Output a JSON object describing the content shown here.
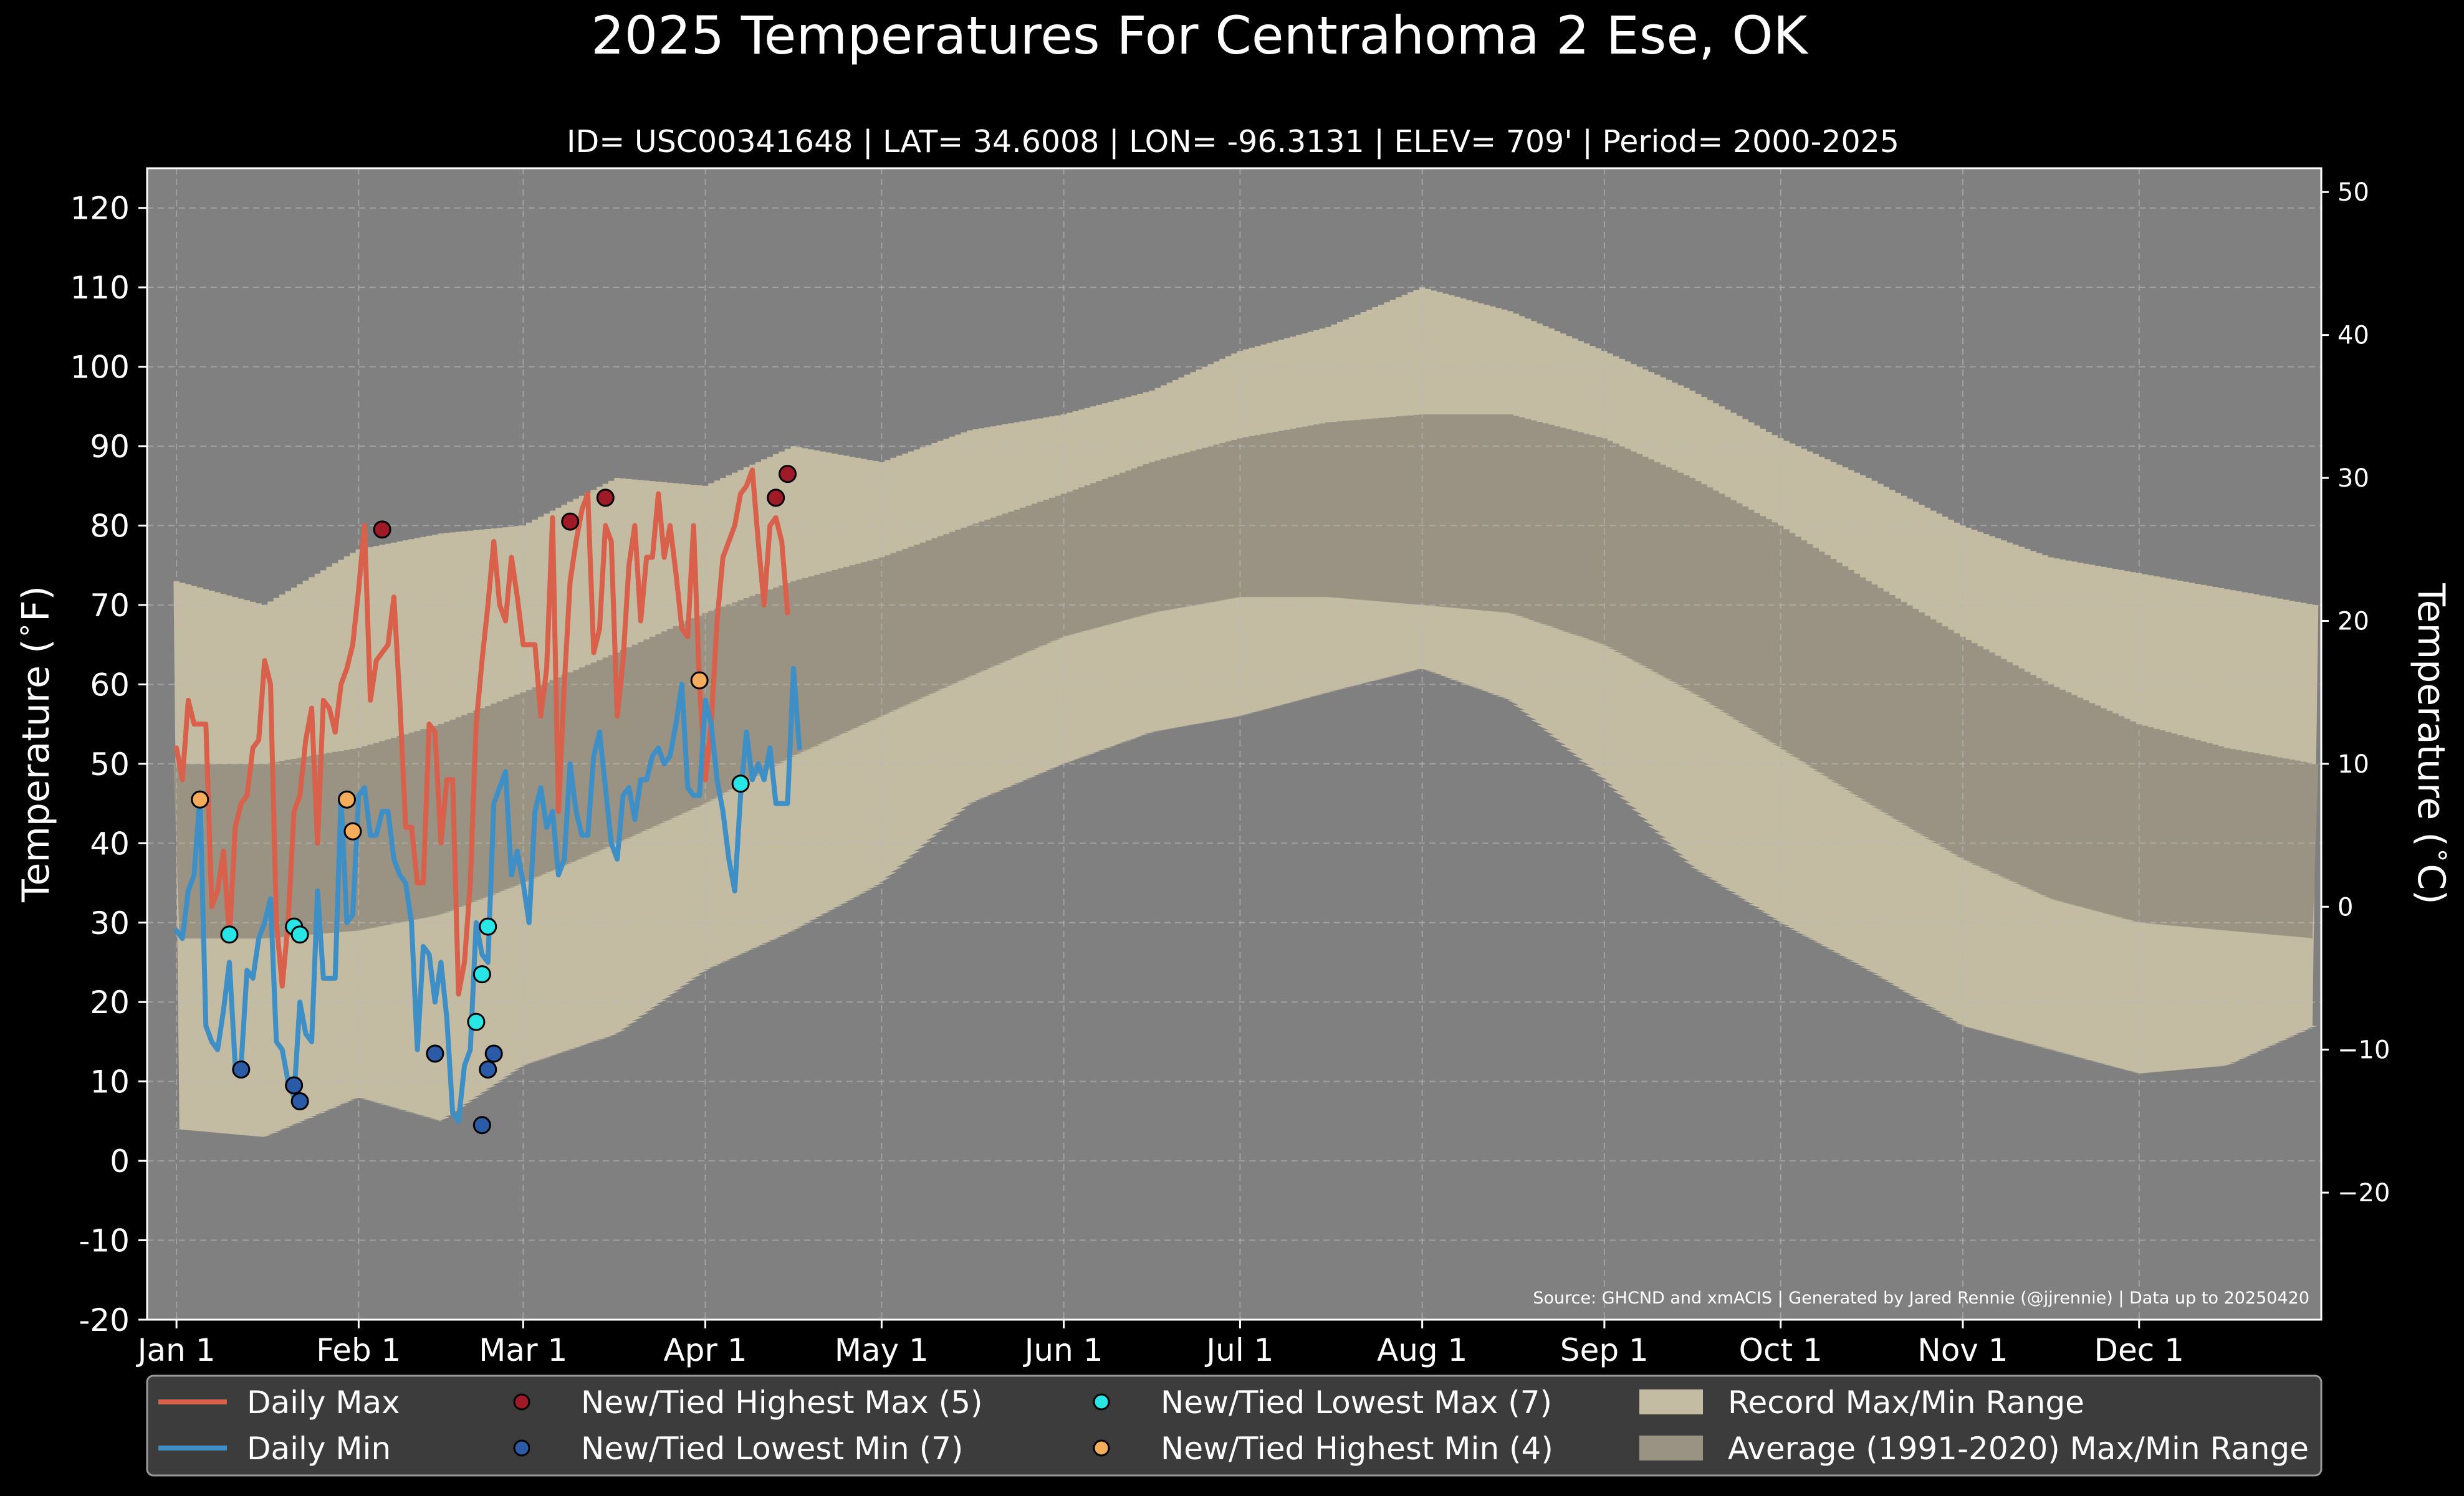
{
  "chart_data": {
    "type": "area",
    "title": "2025 Temperatures For Centrahoma 2 Ese, OK",
    "subtitle": "ID= USC00341648 | LAT= 34.6008 | LON= -96.3131 | ELEV= 709' | Period= 2000-2025",
    "ylabel_left": "Temperature ($^\\circ$F)",
    "ylabel_right": "Temperature ($^\\circ$C)",
    "source": "Source: GHCND and xmACIS | Generated by Jared Rennie (@jjrennie) | Data up to 20250420",
    "x_range_day": [
      -5,
      365
    ],
    "y_range_f": [
      -20,
      125
    ],
    "grid": true,
    "legend_position": "bottom",
    "y_ticks_f": [
      -20,
      -10,
      0,
      10,
      20,
      30,
      40,
      50,
      60,
      70,
      80,
      90,
      100,
      110,
      120
    ],
    "y_ticks_c": [
      -20,
      -10,
      0,
      10,
      20,
      30,
      40,
      50
    ],
    "y_ticks_c_labels": [
      "−20",
      "−10",
      "0",
      "10",
      "20",
      "30",
      "40",
      "50"
    ],
    "x_ticks": [
      {
        "label": "Jan 1",
        "day": 0
      },
      {
        "label": "Feb 1",
        "day": 31
      },
      {
        "label": "Mar 1",
        "day": 59
      },
      {
        "label": "Apr 1",
        "day": 90
      },
      {
        "label": "May 1",
        "day": 120
      },
      {
        "label": "Jun 1",
        "day": 151
      },
      {
        "label": "Jul 1",
        "day": 181
      },
      {
        "label": "Aug 1",
        "day": 212
      },
      {
        "label": "Sep 1",
        "day": 243
      },
      {
        "label": "Oct 1",
        "day": 273
      },
      {
        "label": "Nov 1",
        "day": 304
      },
      {
        "label": "Dec 1",
        "day": 334
      }
    ],
    "colors": {
      "background": "#000000",
      "plot_background": "#808080",
      "record_range": "#c4bba3",
      "normal_range": "#9a9282",
      "daily_max": "#d9604a",
      "daily_min": "#3e8fc6",
      "record_high_max": "#9e1a26",
      "record_low_min": "#2b5aa6",
      "record_low_max": "#29e6e6",
      "record_high_min": "#f5ad5b",
      "legend_background": "#3c3c3c",
      "text": "#ffffff"
    },
    "record_range_f": {
      "x_days": [
        0,
        15,
        31,
        45,
        59,
        75,
        90,
        105,
        120,
        135,
        151,
        166,
        181,
        196,
        212,
        227,
        243,
        258,
        273,
        288,
        304,
        319,
        334,
        349,
        364
      ],
      "max": [
        73,
        70,
        77,
        79,
        80,
        86,
        85,
        90,
        88,
        92,
        94,
        97,
        102,
        105,
        110,
        107,
        102,
        97,
        91,
        86,
        80,
        76,
        74,
        72,
        70
      ],
      "min": [
        4,
        3,
        8,
        5,
        12,
        16,
        24,
        29,
        35,
        45,
        50,
        54,
        56,
        59,
        62,
        58,
        48,
        37,
        30,
        24,
        17,
        14,
        11,
        12,
        17
      ]
    },
    "normal_range_f": {
      "x_days": [
        0,
        15,
        31,
        45,
        59,
        75,
        90,
        105,
        120,
        135,
        151,
        166,
        181,
        196,
        212,
        227,
        243,
        258,
        273,
        288,
        304,
        319,
        334,
        349,
        364
      ],
      "max": [
        50,
        50,
        52,
        55,
        59,
        64,
        69,
        73,
        76,
        80,
        84,
        88,
        91,
        93,
        94,
        94,
        91,
        86,
        80,
        73,
        66,
        60,
        55,
        52,
        50
      ],
      "min": [
        28,
        28,
        29,
        31,
        35,
        40,
        45,
        51,
        56,
        61,
        66,
        69,
        71,
        71,
        70,
        69,
        65,
        59,
        52,
        45,
        38,
        33,
        30,
        29,
        28
      ]
    },
    "series": [
      {
        "name": "Daily Max",
        "x_days": [
          0,
          1,
          2,
          3,
          4,
          5,
          6,
          7,
          8,
          9,
          10,
          11,
          12,
          13,
          14,
          15,
          16,
          17,
          18,
          19,
          20,
          21,
          22,
          23,
          24,
          25,
          26,
          27,
          28,
          29,
          30,
          31,
          32,
          33,
          34,
          35,
          36,
          37,
          38,
          39,
          40,
          41,
          42,
          43,
          44,
          45,
          46,
          47,
          48,
          49,
          50,
          51,
          52,
          53,
          54,
          55,
          56,
          57,
          58,
          59,
          60,
          61,
          62,
          63,
          64,
          65,
          66,
          67,
          68,
          69,
          70,
          71,
          72,
          73,
          74,
          75,
          76,
          77,
          78,
          79,
          80,
          81,
          82,
          83,
          84,
          85,
          86,
          87,
          88,
          89,
          90,
          91,
          92,
          93,
          94,
          95,
          96,
          97,
          98,
          99,
          100,
          101,
          102,
          103,
          104,
          105,
          106,
          107,
          108,
          109
        ],
        "values": [
          52,
          48,
          58,
          55,
          55,
          55,
          32,
          34,
          39,
          28,
          42,
          45,
          46,
          52,
          53,
          63,
          60,
          30,
          22,
          30,
          44,
          46,
          53,
          57,
          40,
          58,
          57,
          54,
          60,
          62,
          65,
          72,
          80,
          58,
          63,
          64,
          65,
          71,
          58,
          42,
          42,
          35,
          35,
          55,
          54,
          40,
          48,
          48,
          21,
          25,
          35,
          55,
          63,
          70,
          78,
          70,
          68,
          76,
          71,
          65,
          65,
          65,
          56,
          62,
          81,
          44,
          60,
          73,
          78,
          82,
          84,
          64,
          67,
          80,
          78,
          56,
          63,
          75,
          80,
          68,
          76,
          76,
          84,
          76,
          80,
          74,
          67,
          66,
          80,
          60,
          48,
          55,
          68,
          76,
          78,
          80,
          84,
          85,
          87,
          78,
          70,
          80,
          81,
          78,
          69,
          null,
          null,
          null,
          null,
          null
        ]
      },
      {
        "name": "Daily Min",
        "x_days": [
          0,
          1,
          2,
          3,
          4,
          5,
          6,
          7,
          8,
          9,
          10,
          11,
          12,
          13,
          14,
          15,
          16,
          17,
          18,
          19,
          20,
          21,
          22,
          23,
          24,
          25,
          26,
          27,
          28,
          29,
          30,
          31,
          32,
          33,
          34,
          35,
          36,
          37,
          38,
          39,
          40,
          41,
          42,
          43,
          44,
          45,
          46,
          47,
          48,
          49,
          50,
          51,
          52,
          53,
          54,
          55,
          56,
          57,
          58,
          59,
          60,
          61,
          62,
          63,
          64,
          65,
          66,
          67,
          68,
          69,
          70,
          71,
          72,
          73,
          74,
          75,
          76,
          77,
          78,
          79,
          80,
          81,
          82,
          83,
          84,
          85,
          86,
          87,
          88,
          89,
          90,
          91,
          92,
          93,
          94,
          95,
          96,
          97,
          98,
          99,
          100,
          101,
          102,
          103,
          104,
          105,
          106,
          107,
          108,
          109
        ],
        "values": [
          29,
          28,
          34,
          36,
          46,
          17,
          15,
          14,
          19,
          25,
          12,
          12,
          24,
          23,
          28,
          30,
          33,
          15,
          14,
          10,
          8,
          20,
          16,
          15,
          34,
          23,
          23,
          23,
          46,
          30,
          31,
          46,
          47,
          41,
          41,
          44,
          44,
          38,
          36,
          35,
          30,
          14,
          27,
          26,
          20,
          25,
          18,
          6,
          5,
          12,
          14,
          30,
          26,
          25,
          45,
          47,
          49,
          36,
          39,
          35,
          30,
          44,
          47,
          42,
          44,
          36,
          38,
          50,
          44,
          41,
          41,
          51,
          54,
          47,
          40,
          38,
          46,
          47,
          43,
          48,
          48,
          51,
          52,
          50,
          51,
          55,
          60,
          47,
          46,
          46,
          58,
          55,
          48,
          44,
          38,
          34,
          46,
          54,
          48,
          50,
          48,
          52,
          45,
          45,
          45,
          62,
          52,
          null,
          null,
          null
        ]
      }
    ],
    "markers": [
      {
        "name": "New/Tied Highest Max (5)",
        "legend_label": "New/Tied Highest Max (5)",
        "points": [
          [
            35,
            79.5
          ],
          [
            67,
            80.5
          ],
          [
            73,
            83.5
          ],
          [
            102,
            83.5
          ],
          [
            104,
            86.5
          ]
        ]
      },
      {
        "name": "New/Tied Lowest Min (7)",
        "legend_label": "New/Tied Lowest Min (7)",
        "points": [
          [
            11,
            11.5
          ],
          [
            20,
            9.5
          ],
          [
            21,
            7.5
          ],
          [
            44,
            13.5
          ],
          [
            52,
            4.5
          ],
          [
            53,
            11.5
          ],
          [
            54,
            13.5
          ]
        ]
      },
      {
        "name": "New/Tied Lowest Max (7)",
        "legend_label": "New/Tied Lowest Max (7)",
        "points": [
          [
            9,
            28.5
          ],
          [
            20,
            29.5
          ],
          [
            21,
            28.5
          ],
          [
            51,
            17.5
          ],
          [
            52,
            23.5
          ],
          [
            53,
            29.5
          ],
          [
            96,
            47.5
          ]
        ]
      },
      {
        "name": "New/Tied Highest Min (4)",
        "legend_label": "New/Tied Highest Min (4)",
        "points": [
          [
            4,
            45.5
          ],
          [
            29,
            45.5
          ],
          [
            30,
            41.5
          ],
          [
            89,
            60.5
          ]
        ]
      }
    ],
    "legend": [
      {
        "label": "Daily Max",
        "kind": "line",
        "color_key": "daily_max"
      },
      {
        "label": "Daily Min",
        "kind": "line",
        "color_key": "daily_min"
      },
      {
        "label": "New/Tied Highest Max (5)",
        "kind": "dot",
        "color_key": "record_high_max"
      },
      {
        "label": "New/Tied Lowest Min (7)",
        "kind": "dot",
        "color_key": "record_low_min"
      },
      {
        "label": "New/Tied Lowest Max (7)",
        "kind": "dot",
        "color_key": "record_low_max"
      },
      {
        "label": "New/Tied Highest Min (4)",
        "kind": "dot",
        "color_key": "record_high_min"
      },
      {
        "label": "Record Max/Min Range",
        "kind": "patch",
        "color_key": "record_range"
      },
      {
        "label": "Average (1991-2020) Max/Min Range",
        "kind": "patch",
        "color_key": "normal_range"
      }
    ]
  }
}
